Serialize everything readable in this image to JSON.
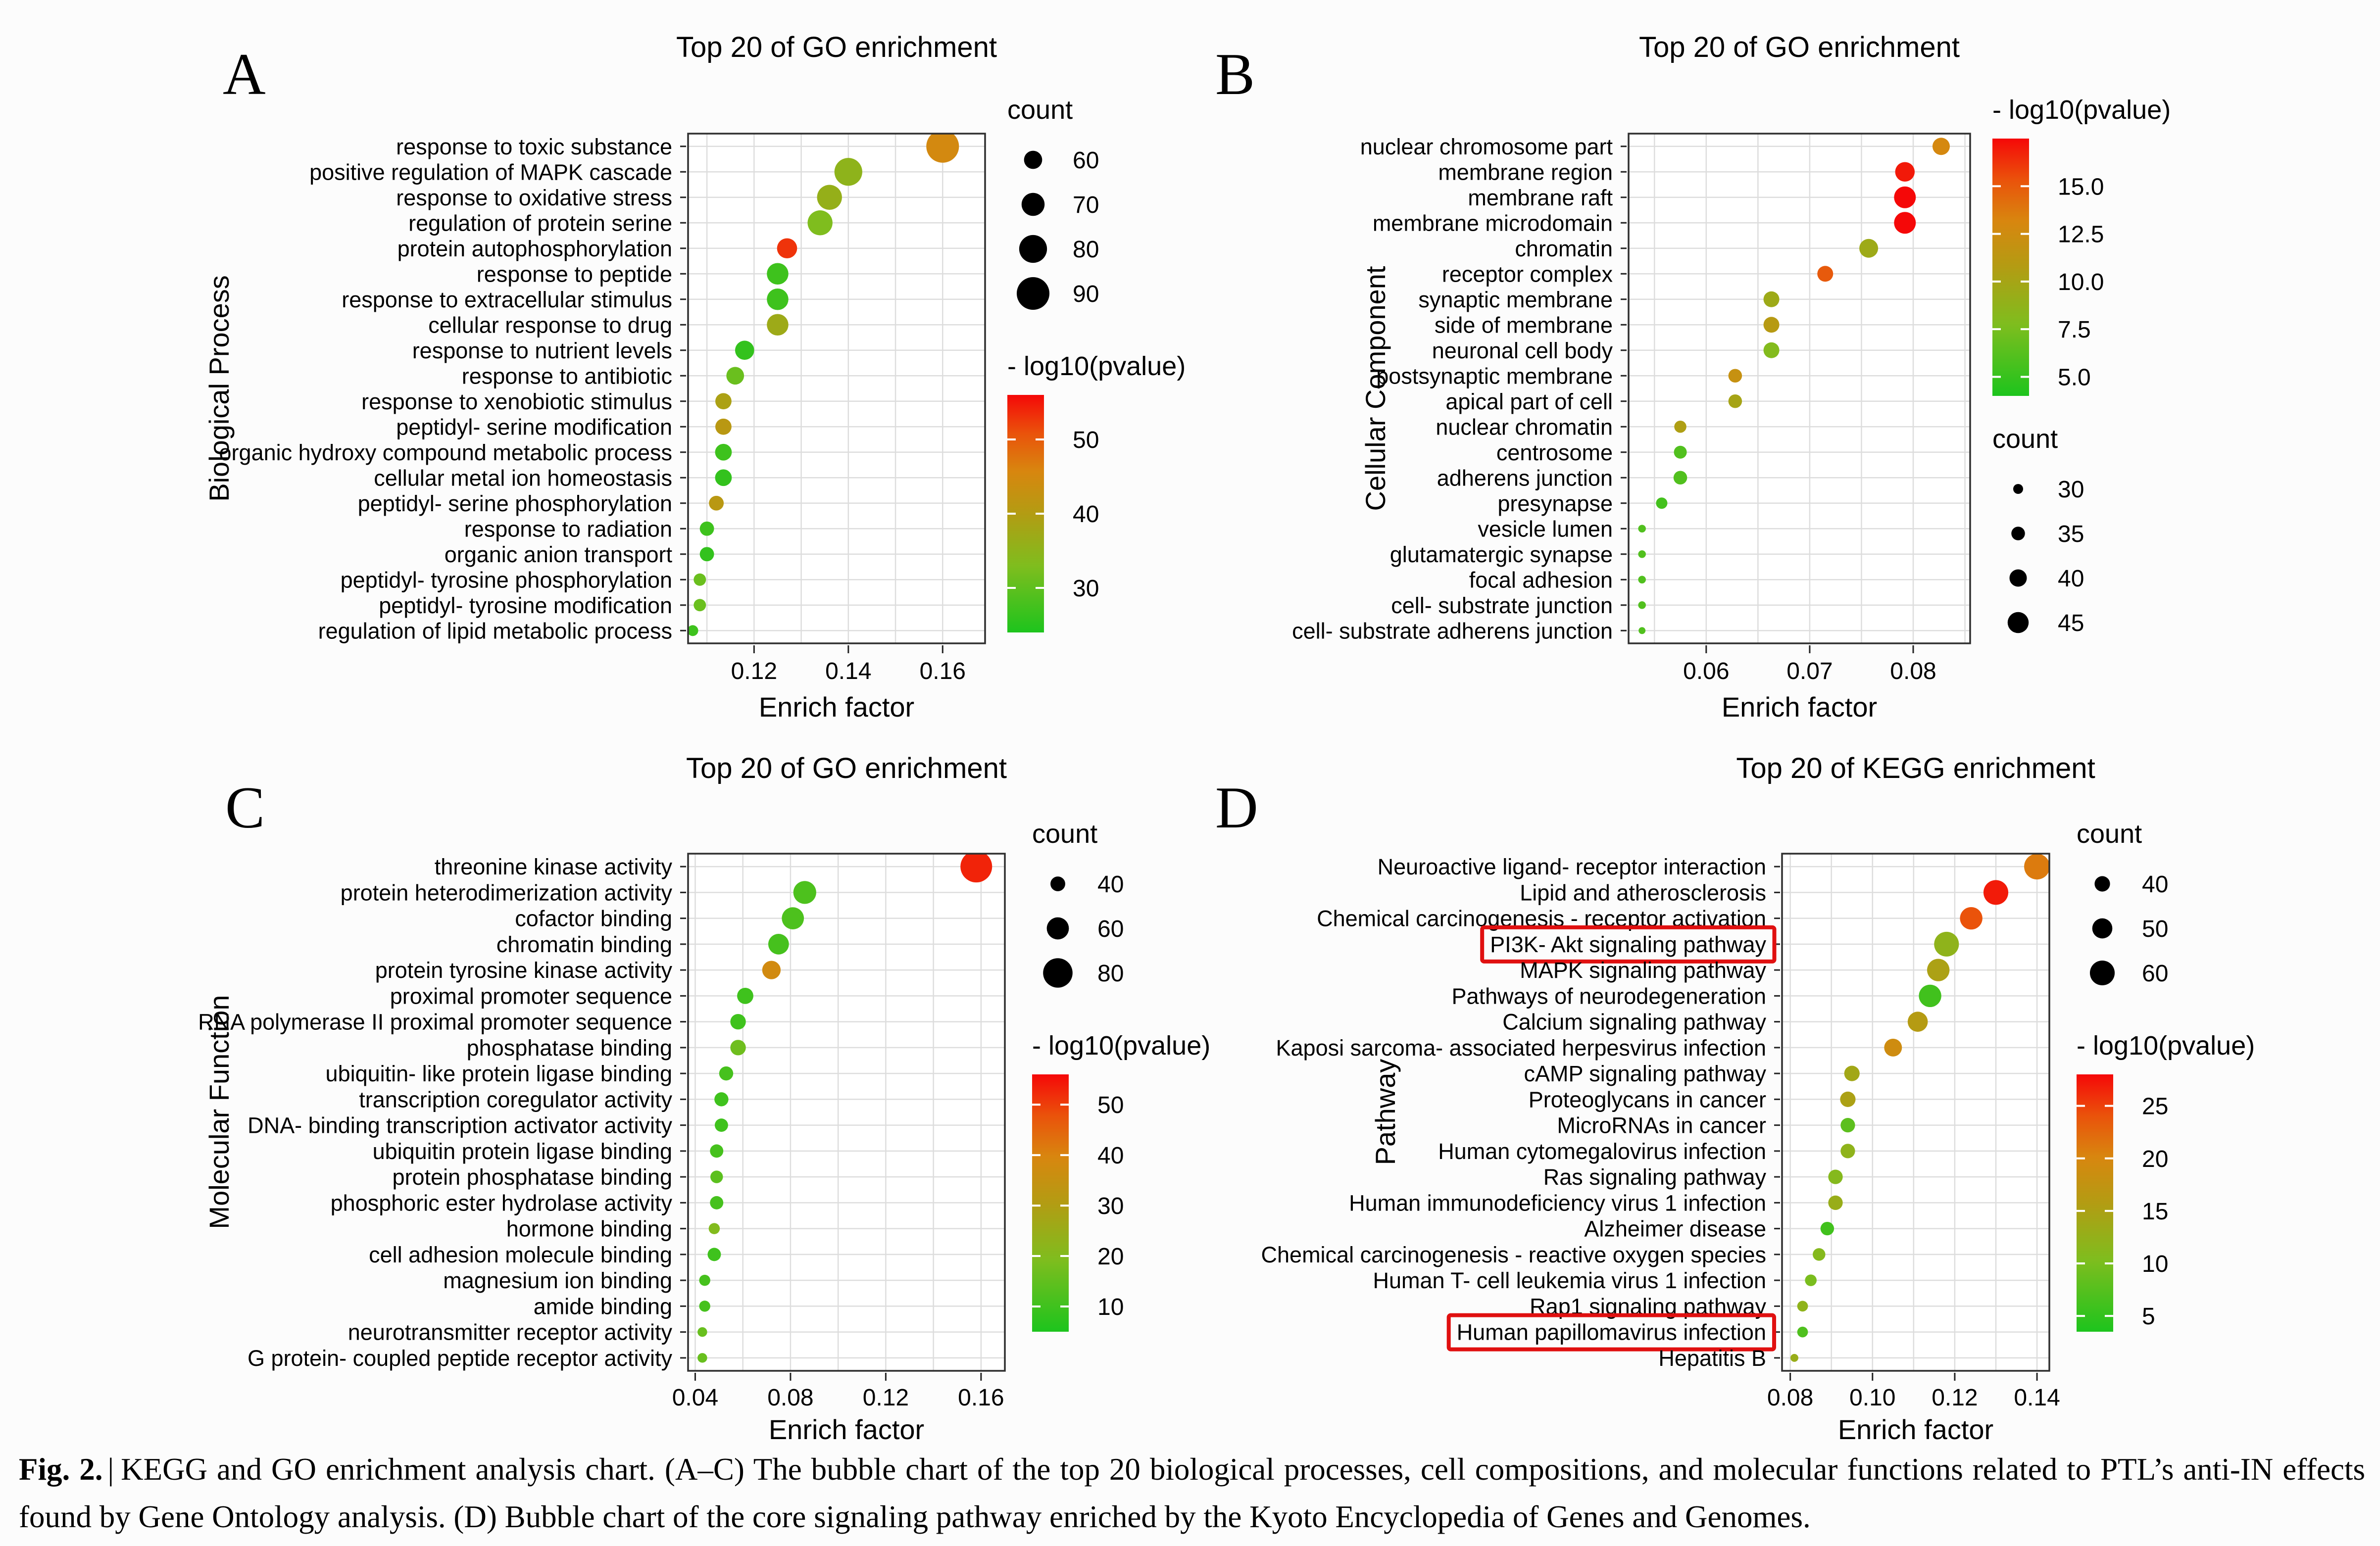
{
  "figure": {
    "caption_label": "Fig. 2.",
    "caption_separator": "|",
    "caption_text": "KEGG and GO enrichment analysis chart. (A–C) The bubble chart of the top 20 biological processes, cell compositions, and molecular functions related to PTL’s anti-IN effects found by Gene Ontology analysis. (D) Bubble chart of the core signaling pathway enriched by the Kyoto Encyclopedia of Genes and Genomes."
  },
  "colors": {
    "page_bg": "#fcfcfc",
    "plot_bg": "#ffffff",
    "grid": "#dddddd",
    "box_border": "#2f2f2f",
    "tick": "#222222",
    "text": "#000000",
    "legend_dot": "#000000",
    "highlight_box": "#e01010",
    "gradient": [
      {
        "t": 0.0,
        "c": "#1dc41d"
      },
      {
        "t": 0.28,
        "c": "#7fbd1e"
      },
      {
        "t": 0.5,
        "c": "#b39c13"
      },
      {
        "t": 0.68,
        "c": "#d8860f"
      },
      {
        "t": 0.84,
        "c": "#ea520b"
      },
      {
        "t": 1.0,
        "c": "#f50808"
      }
    ]
  },
  "chart_data": [
    {
      "panel": "A",
      "type": "bubble",
      "title": "Top 20 of GO enrichment",
      "xlabel": "Enrich factor",
      "ylabel": "Biological Process",
      "xlim": [
        0.106,
        0.169
      ],
      "grid_step": 0.01,
      "x_ticks": [
        {
          "v": 0.12,
          "label": "0.12"
        },
        {
          "v": 0.14,
          "label": "0.14"
        },
        {
          "v": 0.16,
          "label": "0.16"
        }
      ],
      "legend": {
        "order": [
          "count",
          "pvalue"
        ],
        "count_title": "count",
        "count_items": [
          {
            "v": 60,
            "label": "60"
          },
          {
            "v": 70,
            "label": "70"
          },
          {
            "v": 80,
            "label": "80"
          },
          {
            "v": 90,
            "label": "90"
          }
        ],
        "count_domain": [
          45,
          92
        ],
        "pvalue_title": "- log10(pvalue)",
        "pvalue_ticks": [
          {
            "v": 50,
            "label": "50"
          },
          {
            "v": 40,
            "label": "40"
          },
          {
            "v": 30,
            "label": "30"
          }
        ],
        "pvalue_domain": [
          24,
          56
        ]
      },
      "points": [
        {
          "label": "response to toxic substance",
          "x": 0.16,
          "count": 90,
          "pvalue": 45
        },
        {
          "label": "positive regulation of MAPK cascade",
          "x": 0.14,
          "count": 80,
          "pvalue": 35
        },
        {
          "label": "response to oxidative stress",
          "x": 0.136,
          "count": 74,
          "pvalue": 36
        },
        {
          "label": "regulation of protein serine",
          "x": 0.134,
          "count": 74,
          "pvalue": 33
        },
        {
          "label": "protein autophosphorylation",
          "x": 0.127,
          "count": 64,
          "pvalue": 53
        },
        {
          "label": "response to peptide",
          "x": 0.125,
          "count": 67,
          "pvalue": 27
        },
        {
          "label": "response to extracellular stimulus",
          "x": 0.125,
          "count": 67,
          "pvalue": 27
        },
        {
          "label": "cellular response to drug",
          "x": 0.125,
          "count": 67,
          "pvalue": 37
        },
        {
          "label": "response to nutrient levels",
          "x": 0.118,
          "count": 62,
          "pvalue": 26
        },
        {
          "label": "response to antibiotic",
          "x": 0.116,
          "count": 59,
          "pvalue": 31
        },
        {
          "label": "response to xenobiotic stimulus",
          "x": 0.1135,
          "count": 56,
          "pvalue": 39
        },
        {
          "label": "peptidyl- serine modification",
          "x": 0.1135,
          "count": 56,
          "pvalue": 41
        },
        {
          "label": "organic hydroxy compound metabolic process",
          "x": 0.1135,
          "count": 57,
          "pvalue": 27
        },
        {
          "label": "cellular metal ion homeostasis",
          "x": 0.1135,
          "count": 57,
          "pvalue": 26
        },
        {
          "label": "peptidyl- serine phosphorylation",
          "x": 0.112,
          "count": 53,
          "pvalue": 41
        },
        {
          "label": "response to radiation",
          "x": 0.11,
          "count": 52,
          "pvalue": 27
        },
        {
          "label": "organic anion transport",
          "x": 0.11,
          "count": 52,
          "pvalue": 26
        },
        {
          "label": "peptidyl- tyrosine phosphorylation",
          "x": 0.1085,
          "count": 48,
          "pvalue": 31
        },
        {
          "label": "peptidyl- tyrosine modification",
          "x": 0.1085,
          "count": 48,
          "pvalue": 31
        },
        {
          "label": "regulation of lipid metabolic process",
          "x": 0.107,
          "count": 45,
          "pvalue": 27
        }
      ]
    },
    {
      "panel": "B",
      "type": "bubble",
      "title": "Top 20 of GO enrichment",
      "xlabel": "Enrich factor",
      "ylabel": "Cellular Component",
      "xlim": [
        0.0525,
        0.0855
      ],
      "grid_step": 0.005,
      "x_ticks": [
        {
          "v": 0.06,
          "label": "0.06"
        },
        {
          "v": 0.07,
          "label": "0.07"
        },
        {
          "v": 0.08,
          "label": "0.08"
        }
      ],
      "legend": {
        "order": [
          "pvalue",
          "count"
        ],
        "count_title": "count",
        "count_items": [
          {
            "v": 30,
            "label": "30"
          },
          {
            "v": 35,
            "label": "35"
          },
          {
            "v": 40,
            "label": "40"
          },
          {
            "v": 45,
            "label": "45"
          }
        ],
        "count_domain": [
          26,
          46
        ],
        "pvalue_title": "- log10(pvalue)",
        "pvalue_ticks": [
          {
            "v": 15,
            "label": "15.0"
          },
          {
            "v": 12.5,
            "label": "12.5"
          },
          {
            "v": 10,
            "label": "10.0"
          },
          {
            "v": 7.5,
            "label": "7.5"
          },
          {
            "v": 5,
            "label": "5.0"
          }
        ],
        "pvalue_domain": [
          4,
          17.5
        ]
      },
      "points": [
        {
          "label": "nuclear chromosome part",
          "x": 0.0827,
          "count": 40,
          "pvalue": 13
        },
        {
          "label": "membrane region",
          "x": 0.0792,
          "count": 43,
          "pvalue": 17
        },
        {
          "label": "membrane raft",
          "x": 0.0792,
          "count": 46,
          "pvalue": 17.5
        },
        {
          "label": "membrane microdomain",
          "x": 0.0792,
          "count": 46,
          "pvalue": 17.5
        },
        {
          "label": "chromatin",
          "x": 0.0757,
          "count": 42,
          "pvalue": 9.5
        },
        {
          "label": "receptor complex",
          "x": 0.0715,
          "count": 38,
          "pvalue": 15
        },
        {
          "label": "synaptic membrane",
          "x": 0.0663,
          "count": 38,
          "pvalue": 9.5
        },
        {
          "label": "side of membrane",
          "x": 0.0663,
          "count": 38,
          "pvalue": 11
        },
        {
          "label": "neuronal cell body",
          "x": 0.0663,
          "count": 38,
          "pvalue": 8
        },
        {
          "label": "postsynaptic membrane",
          "x": 0.0628,
          "count": 35,
          "pvalue": 12
        },
        {
          "label": "apical part of cell",
          "x": 0.0628,
          "count": 35,
          "pvalue": 10
        },
        {
          "label": "nuclear chromatin",
          "x": 0.0575,
          "count": 33,
          "pvalue": 10.5
        },
        {
          "label": "centrosome",
          "x": 0.0575,
          "count": 34,
          "pvalue": 6
        },
        {
          "label": "adherens junction",
          "x": 0.0575,
          "count": 35,
          "pvalue": 6
        },
        {
          "label": "presynapse",
          "x": 0.0557,
          "count": 32,
          "pvalue": 5.5
        },
        {
          "label": "vesicle lumen",
          "x": 0.0538,
          "count": 27,
          "pvalue": 6
        },
        {
          "label": "glutamatergic synapse",
          "x": 0.0538,
          "count": 27,
          "pvalue": 6
        },
        {
          "label": "focal adhesion",
          "x": 0.0538,
          "count": 27,
          "pvalue": 6
        },
        {
          "label": "cell- substrate junction",
          "x": 0.0538,
          "count": 27,
          "pvalue": 6
        },
        {
          "label": "cell- substrate adherens junction",
          "x": 0.0538,
          "count": 26,
          "pvalue": 6
        }
      ]
    },
    {
      "panel": "C",
      "type": "bubble",
      "title": "Top 20 of GO enrichment",
      "xlabel": "Enrich factor",
      "ylabel": "Molecular Function",
      "xlim": [
        0.037,
        0.17
      ],
      "grid_step": 0.02,
      "x_ticks": [
        {
          "v": 0.04,
          "label": "0.04"
        },
        {
          "v": 0.08,
          "label": "0.08"
        },
        {
          "v": 0.12,
          "label": "0.12"
        },
        {
          "v": 0.16,
          "label": "0.16"
        }
      ],
      "legend": {
        "order": [
          "count",
          "pvalue"
        ],
        "count_title": "count",
        "count_items": [
          {
            "v": 40,
            "label": "40"
          },
          {
            "v": 60,
            "label": "60"
          },
          {
            "v": 80,
            "label": "80"
          }
        ],
        "count_domain": [
          24,
          86
        ],
        "pvalue_title": "- log10(pvalue)",
        "pvalue_ticks": [
          {
            "v": 50,
            "label": "50"
          },
          {
            "v": 40,
            "label": "40"
          },
          {
            "v": 30,
            "label": "30"
          },
          {
            "v": 20,
            "label": "20"
          },
          {
            "v": 10,
            "label": "10"
          }
        ],
        "pvalue_domain": [
          5,
          56
        ]
      },
      "points": [
        {
          "label": "threonine kinase activity",
          "x": 0.158,
          "count": 86,
          "pvalue": 53
        },
        {
          "label": "protein heterodimerization activity",
          "x": 0.086,
          "count": 62,
          "pvalue": 12
        },
        {
          "label": "cofactor binding",
          "x": 0.081,
          "count": 60,
          "pvalue": 12
        },
        {
          "label": "chromatin binding",
          "x": 0.075,
          "count": 56,
          "pvalue": 11
        },
        {
          "label": "protein tyrosine kinase activity",
          "x": 0.072,
          "count": 50,
          "pvalue": 38
        },
        {
          "label": "proximal promoter sequence",
          "x": 0.061,
          "count": 44,
          "pvalue": 10
        },
        {
          "label": "RNA polymerase II proximal promoter sequence",
          "x": 0.058,
          "count": 42,
          "pvalue": 10
        },
        {
          "label": "phosphatase binding",
          "x": 0.058,
          "count": 42,
          "pvalue": 17
        },
        {
          "label": "ubiquitin- like protein ligase binding",
          "x": 0.053,
          "count": 38,
          "pvalue": 11
        },
        {
          "label": "transcription coregulator activity",
          "x": 0.051,
          "count": 38,
          "pvalue": 10
        },
        {
          "label": "DNA- binding transcription activator activity",
          "x": 0.051,
          "count": 36,
          "pvalue": 10
        },
        {
          "label": "ubiquitin protein ligase binding",
          "x": 0.049,
          "count": 36,
          "pvalue": 11
        },
        {
          "label": "protein phosphatase binding",
          "x": 0.049,
          "count": 34,
          "pvalue": 14
        },
        {
          "label": "phosphoric ester hydrolase activity",
          "x": 0.049,
          "count": 36,
          "pvalue": 11
        },
        {
          "label": "hormone binding",
          "x": 0.048,
          "count": 30,
          "pvalue": 20
        },
        {
          "label": "cell adhesion molecule binding",
          "x": 0.048,
          "count": 36,
          "pvalue": 10
        },
        {
          "label": "magnesium ion binding",
          "x": 0.044,
          "count": 30,
          "pvalue": 11
        },
        {
          "label": "amide binding",
          "x": 0.044,
          "count": 30,
          "pvalue": 11
        },
        {
          "label": "neurotransmitter receptor activity",
          "x": 0.043,
          "count": 26,
          "pvalue": 16
        },
        {
          "label": "G protein- coupled peptide receptor activity",
          "x": 0.043,
          "count": 26,
          "pvalue": 16
        }
      ]
    },
    {
      "panel": "D",
      "type": "bubble",
      "title": "Top 20 of KEGG enrichment",
      "xlabel": "Enrich factor",
      "ylabel": "Pathway",
      "xlim": [
        0.078,
        0.143
      ],
      "grid_step": 0.01,
      "x_ticks": [
        {
          "v": 0.08,
          "label": "0.08"
        },
        {
          "v": 0.1,
          "label": "0.10"
        },
        {
          "v": 0.12,
          "label": "0.12"
        },
        {
          "v": 0.14,
          "label": "0.14"
        }
      ],
      "legend": {
        "order": [
          "count",
          "pvalue"
        ],
        "count_title": "count",
        "count_items": [
          {
            "v": 40,
            "label": "40"
          },
          {
            "v": 50,
            "label": "50"
          },
          {
            "v": 60,
            "label": "60"
          }
        ],
        "count_domain": [
          24,
          62
        ],
        "pvalue_title": "- log10(pvalue)",
        "pvalue_ticks": [
          {
            "v": 25,
            "label": "25"
          },
          {
            "v": 20,
            "label": "20"
          },
          {
            "v": 15,
            "label": "15"
          },
          {
            "v": 10,
            "label": "10"
          },
          {
            "v": 5,
            "label": "5"
          }
        ],
        "pvalue_domain": [
          3.5,
          28
        ]
      },
      "points": [
        {
          "label": "Neuroactive ligand- receptor interaction",
          "x": 0.14,
          "count": 62,
          "pvalue": 21
        },
        {
          "label": "Lipid and atherosclerosis",
          "x": 0.13,
          "count": 60,
          "pvalue": 27
        },
        {
          "label": "Chemical carcinogenesis -  receptor activation",
          "x": 0.124,
          "count": 55,
          "pvalue": 24
        },
        {
          "label": "PI3K- Akt signaling pathway",
          "x": 0.118,
          "count": 60,
          "pvalue": 12,
          "highlighted": true
        },
        {
          "label": "MAPK signaling pathway",
          "x": 0.116,
          "count": 55,
          "pvalue": 15
        },
        {
          "label": "Pathways of neurodegeneration",
          "x": 0.114,
          "count": 55,
          "pvalue": 6
        },
        {
          "label": "Calcium signaling pathway",
          "x": 0.111,
          "count": 50,
          "pvalue": 16
        },
        {
          "label": "Kaposi sarcoma- associated herpesvirus infection",
          "x": 0.105,
          "count": 45,
          "pvalue": 19
        },
        {
          "label": "cAMP signaling pathway",
          "x": 0.095,
          "count": 40,
          "pvalue": 14
        },
        {
          "label": "Proteoglycans in cancer",
          "x": 0.094,
          "count": 40,
          "pvalue": 15
        },
        {
          "label": "MicroRNAs in cancer",
          "x": 0.094,
          "count": 38,
          "pvalue": 8
        },
        {
          "label": "Human cytomegalovirus infection",
          "x": 0.094,
          "count": 38,
          "pvalue": 12
        },
        {
          "label": "Ras signaling pathway",
          "x": 0.091,
          "count": 38,
          "pvalue": 11
        },
        {
          "label": "Human immunodeficiency virus 1 infection",
          "x": 0.091,
          "count": 38,
          "pvalue": 13
        },
        {
          "label": "Alzheimer disease",
          "x": 0.089,
          "count": 36,
          "pvalue": 6
        },
        {
          "label": "Chemical carcinogenesis -  reactive oxygen species",
          "x": 0.087,
          "count": 34,
          "pvalue": 11
        },
        {
          "label": "Human T- cell leukemia virus 1 infection",
          "x": 0.085,
          "count": 32,
          "pvalue": 10
        },
        {
          "label": "Rap1 signaling pathway",
          "x": 0.083,
          "count": 30,
          "pvalue": 12
        },
        {
          "label": "Human papillomavirus infection",
          "x": 0.083,
          "count": 30,
          "pvalue": 7,
          "highlighted": true
        },
        {
          "label": "Hepatitis B",
          "x": 0.081,
          "count": 24,
          "pvalue": 13
        }
      ]
    }
  ]
}
